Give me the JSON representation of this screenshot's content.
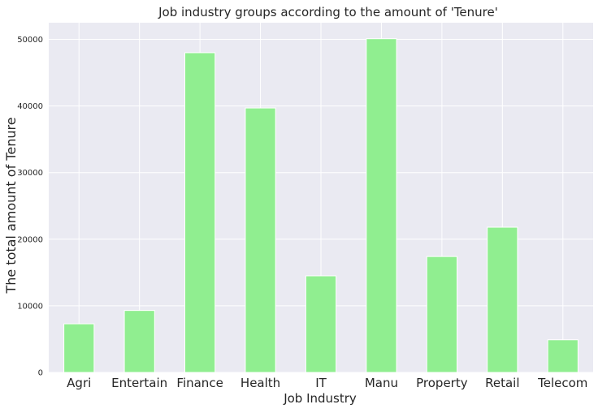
{
  "chart_data": {
    "type": "bar",
    "title": "Job industry groups according to the amount of 'Tenure'",
    "xlabel": "Job Industry",
    "ylabel": "The total amount of Tenure",
    "categories": [
      "Agri",
      "Entertain",
      "Finance",
      "Health",
      "IT",
      "Manu",
      "Property",
      "Retail",
      "Telecom"
    ],
    "values": [
      7300,
      9300,
      48000,
      39700,
      14500,
      50100,
      17400,
      21800,
      4900
    ],
    "ylim": [
      0,
      52500
    ],
    "yticks": [
      0,
      10000,
      20000,
      30000,
      40000,
      50000
    ],
    "ytick_labels": [
      "0",
      "10000",
      "20000",
      "30000",
      "40000",
      "50000"
    ],
    "grid": true,
    "colors": {
      "bar": "#90ee90",
      "background": "#eaeaf2",
      "grid": "#ffffff"
    }
  }
}
